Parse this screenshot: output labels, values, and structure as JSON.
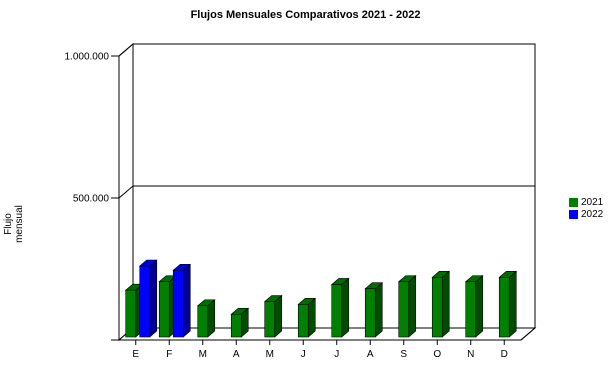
{
  "chart_data": {
    "type": "bar",
    "title": "Flujos Mensuales Comparativos 2021 - 2022",
    "ylabel": "Flujo mensual",
    "xlabel": "",
    "categories": [
      "E",
      "F",
      "M",
      "A",
      "M",
      "J",
      "J",
      "A",
      "S",
      "O",
      "N",
      "D"
    ],
    "series": [
      {
        "name": "2021",
        "color": "#008000",
        "values": [
          165000,
          195000,
          110000,
          80000,
          125000,
          115000,
          185000,
          170000,
          195000,
          210000,
          195000,
          210000
        ]
      },
      {
        "name": "2022",
        "color": "#0000ff",
        "values": [
          250000,
          235000,
          null,
          null,
          null,
          null,
          null,
          null,
          null,
          null,
          null,
          null
        ]
      }
    ],
    "ylim": [
      0,
      1000000
    ],
    "yticks": [
      {
        "value": 500000,
        "label": "500.000"
      },
      {
        "value": 1000000,
        "label": "1.000.000"
      }
    ],
    "grid": true,
    "legend_position": "right"
  }
}
